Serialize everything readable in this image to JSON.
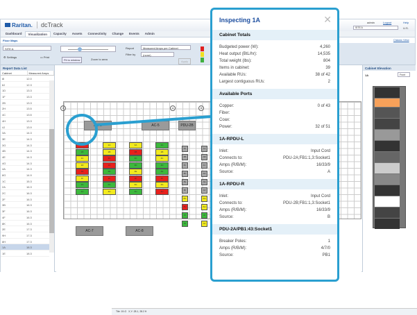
{
  "header": {
    "brand": "Raritan.",
    "product": "dcTrack",
    "user": "admin",
    "logout": "Logout",
    "help": "Help",
    "site": "SITE A",
    "units": "U.S.",
    "classic": "Classic View"
  },
  "nav": [
    "Dashboard",
    "Visualization",
    "Capacity",
    "Assets",
    "Connectivity",
    "Change",
    "Events",
    "Admin"
  ],
  "subnav": "Floor Maps",
  "toolbar": {
    "site": "SITE A",
    "settings": "Settings",
    "print": "Print",
    "fit": "Fit to window",
    "zoom_area": "Zoom to area",
    "report_label": "Report",
    "report_value": "Measured Amps per Cabinet",
    "filter_label": "Filter by",
    "filter_value": "(none)",
    "apply": "Apply",
    "zoom_level": 0.3,
    "legend_colors": [
      "#e02020",
      "#f0e020",
      "#40b040"
    ]
  },
  "report_list": {
    "title": "Report Data List",
    "columns": [
      "Cabinet",
      "Measured Amps"
    ],
    "rows": [
      [
        "8I",
        "12.0"
      ],
      [
        "8J",
        "12.3"
      ],
      [
        "1D",
        "13.3"
      ],
      [
        "1F",
        "13.3"
      ],
      [
        "2B",
        "13.3"
      ],
      [
        "2H",
        "13.5"
      ],
      [
        "4C",
        "13.5"
      ],
      [
        "4H",
        "13.3"
      ],
      [
        "4J",
        "13.9"
      ],
      [
        "3A",
        "14.3"
      ],
      [
        "3E",
        "14.3"
      ],
      [
        "3G",
        "14.3"
      ],
      [
        "4B",
        "14.3"
      ],
      [
        "4E",
        "14.3"
      ],
      [
        "4G",
        "14.3"
      ],
      [
        "4A",
        "14.3"
      ],
      [
        "8G",
        "14.9"
      ],
      [
        "1C",
        "15.3"
      ],
      [
        "2A",
        "16.3"
      ],
      [
        "2C",
        "16.3"
      ],
      [
        "2F",
        "16.3"
      ],
      [
        "3B",
        "16.3"
      ],
      [
        "3F",
        "16.3"
      ],
      [
        "4F",
        "16.3"
      ],
      [
        "8K",
        "16.3"
      ],
      [
        "2E",
        "17.3"
      ],
      [
        "9H",
        "17.3"
      ],
      [
        "8H",
        "17.3"
      ],
      [
        "1A",
        "18.3"
      ],
      [
        "1E",
        "18.3"
      ]
    ],
    "selected": "1A"
  },
  "map": {
    "ac_units": [
      "AC-6",
      "AC-5",
      "PDU-2B",
      "AC-7",
      "AC-8"
    ],
    "column_markers": [
      "2",
      "4",
      "5"
    ],
    "row_markers": [
      "A",
      "B",
      "C"
    ],
    "columns": [
      {
        "labels": [
          "1A",
          "1B",
          "1C",
          "1D",
          "1E",
          "1F",
          "1G",
          "1H"
        ],
        "status": [
          "r",
          "g",
          "y",
          "y",
          "r",
          "y",
          "g",
          "g"
        ]
      },
      {
        "labels": [
          "2A",
          "2B",
          "2C",
          "2D",
          "2E",
          "2F",
          "2G",
          "2H"
        ],
        "status": [
          "y",
          "y",
          "r",
          "r",
          "g",
          "r",
          "g",
          "y"
        ]
      },
      {
        "labels": [
          "3A",
          "3B",
          "3C",
          "3D",
          "3E",
          "3F",
          "3G",
          "3H"
        ],
        "status": [
          "y",
          "r",
          "g",
          "g",
          "y",
          "r",
          "y",
          "g"
        ]
      },
      {
        "labels": [
          "4A",
          "4B",
          "4C",
          "4D",
          "4E",
          "4F",
          "4G",
          "4H"
        ],
        "status": [
          "g",
          "y",
          "y",
          "g",
          "g",
          "r",
          "y",
          "r"
        ]
      },
      {
        "labels": [
          "8A",
          "8B",
          "8C",
          "8D",
          "8E",
          "8F",
          "8G",
          "8H",
          "8I",
          "8J"
        ],
        "status": [
          "n",
          "n",
          "n",
          "n",
          "n",
          "n",
          "y",
          "r",
          "g",
          "g"
        ]
      },
      {
        "labels": [
          "AA",
          "AB",
          "AC",
          "AD",
          "AE",
          "AF",
          "AG",
          "AH",
          "AI",
          "AJ"
        ],
        "status": [
          "n",
          "n",
          "n",
          "n",
          "n",
          "n",
          "y",
          "y",
          "g",
          "y"
        ]
      }
    ],
    "status_colors": {
      "r": "#e8201c",
      "y": "#f2ea1e",
      "g": "#3cb83c",
      "n": "#a8a8a8"
    },
    "status_bar": {
      "tile": "Tile: 19-G",
      "xy": "X,Y: 28.1, 28.2 ft"
    }
  },
  "elevation": {
    "title": "Cabinet Elevation",
    "cabinet": "1A",
    "view": "Front"
  },
  "popup": {
    "title": "Inspecting 1A",
    "sections": [
      {
        "title": "Cabinet Totals",
        "rows": [
          [
            "Budgeted power (W):",
            "4,260"
          ],
          [
            "Heat output (BtL/hr):",
            "14,535"
          ],
          [
            "Total weight (lbs):",
            "804"
          ],
          [
            "Items in cabinet:",
            "39"
          ],
          [
            "Available RUs:",
            "38 of 42"
          ],
          [
            "Largest contiguous RUs:",
            "2"
          ]
        ]
      },
      {
        "title": "Available Ports",
        "rows": [
          [
            "Copper:",
            "0 of 43"
          ],
          [
            "Fiber:",
            ""
          ],
          [
            "Coax:",
            ""
          ],
          [
            "Power:",
            "32 of 51"
          ]
        ]
      },
      {
        "title": "1A-RPDU-L",
        "rows": [
          [
            "Inlet:",
            "Input Cord"
          ],
          [
            "Connects to:",
            "PDU-2A;FB1:1,3:Socket1"
          ],
          [
            "Amps (R/B/M):",
            "16/33/9"
          ],
          [
            "Source:",
            "A"
          ]
        ]
      },
      {
        "title": "1A-RPDU-R",
        "rows": [
          [
            "Inlet:",
            "Input Cord"
          ],
          [
            "Connects to:",
            "PDU-2B;FB1:1,3:Socket1"
          ],
          [
            "Amps (R/B/M):",
            "16/33/9"
          ],
          [
            "Source:",
            "B"
          ]
        ]
      },
      {
        "title": "PDU-2A/PB1:43:Socket1",
        "rows": [
          [
            "Breaker Poles:",
            "1"
          ],
          [
            "Amps (R/B/M):",
            "4/7/0"
          ],
          [
            "Source:",
            "PB1"
          ]
        ]
      }
    ]
  },
  "accent": "#2a9fd0"
}
